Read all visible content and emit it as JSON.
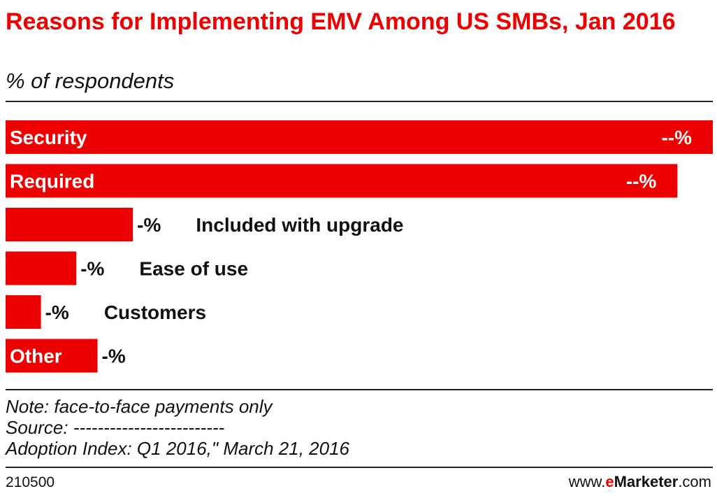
{
  "title": "Reasons for Implementing EMV Among US SMBs, Jan 2016",
  "subtitle": "% of respondents",
  "notes": {
    "note": "Note: face-to-face payments only",
    "source": "Source: -------------------------",
    "citation": "Adoption Index: Q1 2016,\" March 21, 2016"
  },
  "footer": {
    "chart_id": "210500",
    "brand_prefix": "www.",
    "brand_e": "e",
    "brand_name": "Marketer",
    "brand_suffix": ".com"
  },
  "colors": {
    "bar": "#ee0000",
    "text": "#111111",
    "rule": "#222222"
  },
  "chart_data": {
    "type": "bar",
    "orientation": "horizontal",
    "categories": [
      "Security",
      "Required",
      "Included with upgrade",
      "Ease of use",
      "Customers",
      "Other"
    ],
    "values": [
      100,
      95,
      18,
      10,
      5,
      13
    ],
    "value_labels": [
      "--%",
      "--%",
      "-%",
      "-%",
      "-%",
      "-%"
    ],
    "xlim": [
      0,
      100
    ],
    "grid": false,
    "legend": "none"
  }
}
